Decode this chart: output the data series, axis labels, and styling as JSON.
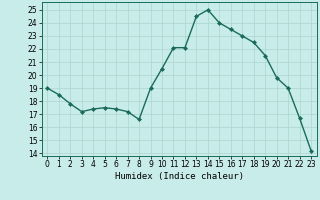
{
  "x": [
    0,
    1,
    2,
    3,
    4,
    5,
    6,
    7,
    8,
    9,
    10,
    11,
    12,
    13,
    14,
    15,
    16,
    17,
    18,
    19,
    20,
    21,
    22,
    23
  ],
  "y": [
    19,
    18.5,
    17.8,
    17.2,
    17.4,
    17.5,
    17.4,
    17.2,
    16.6,
    19.0,
    20.5,
    22.1,
    22.1,
    24.5,
    25.0,
    24.0,
    23.5,
    23.0,
    22.5,
    21.5,
    19.8,
    19.0,
    16.7,
    14.2
  ],
  "line_color": "#1a6b5a",
  "marker": "D",
  "marker_size": 2.0,
  "background_color": "#c8ecea",
  "grid_color": "#aed4d0",
  "xlabel": "Humidex (Indice chaleur)",
  "xlim": [
    -0.5,
    23.5
  ],
  "ylim": [
    13.8,
    25.6
  ],
  "yticks": [
    14,
    15,
    16,
    17,
    18,
    19,
    20,
    21,
    22,
    23,
    24,
    25
  ],
  "xticks": [
    0,
    1,
    2,
    3,
    4,
    5,
    6,
    7,
    8,
    9,
    10,
    11,
    12,
    13,
    14,
    15,
    16,
    17,
    18,
    19,
    20,
    21,
    22,
    23
  ],
  "tick_fontsize": 5.5,
  "label_fontsize": 6.5,
  "line_width": 1.0
}
